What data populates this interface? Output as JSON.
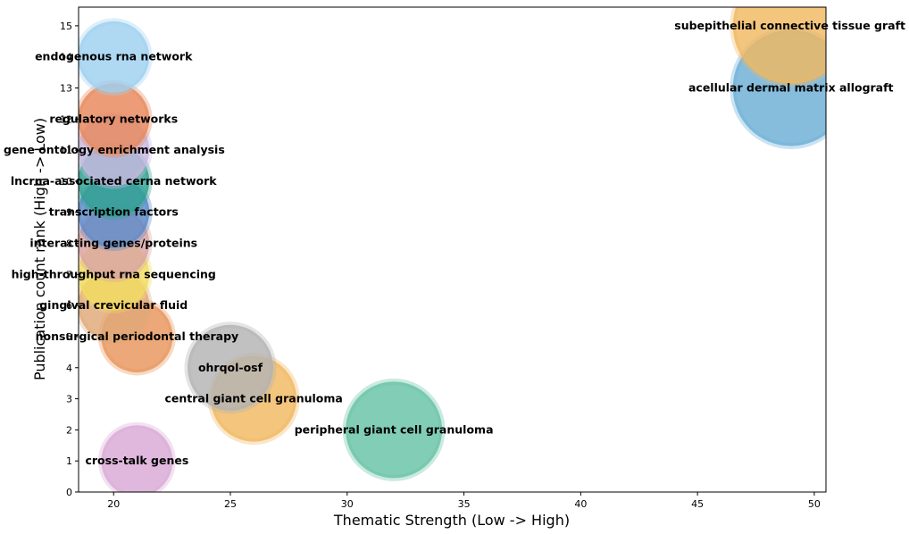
{
  "chart_data": {
    "type": "scatter",
    "title": "",
    "xlabel": "Thematic Strength (Low -> High)",
    "ylabel": "Publication count rank (High -> Low)",
    "xlim": [
      18.5,
      50.5
    ],
    "ylim": [
      0,
      15.6
    ],
    "xticks": [
      20,
      25,
      30,
      35,
      40,
      45,
      50
    ],
    "yticks": [
      0,
      1,
      2,
      3,
      4,
      5,
      6,
      7,
      8,
      9,
      10,
      11,
      12,
      13,
      14,
      15
    ],
    "grid": false,
    "legend": "none",
    "points": [
      {
        "label": "cross-talk genes",
        "x": 21,
        "y": 1,
        "size": 1,
        "color": "#d9a8d6"
      },
      {
        "label": "peripheral giant cell granuloma",
        "x": 32,
        "y": 2,
        "size": 3,
        "color": "#66c2a5"
      },
      {
        "label": "central giant cell granuloma",
        "x": 26,
        "y": 3,
        "size": 2,
        "color": "#f0b860"
      },
      {
        "label": "ohrqol-osf",
        "x": 25,
        "y": 4,
        "size": 2,
        "color": "#b3b3b3"
      },
      {
        "label": "nonsurgical periodontal therapy",
        "x": 21,
        "y": 5,
        "size": 1,
        "color": "#e8955a"
      },
      {
        "label": "gingival crevicular fluid",
        "x": 20,
        "y": 6,
        "size": 1,
        "color": "#e0a878"
      },
      {
        "label": "high-throughput rna sequencing",
        "x": 20,
        "y": 7,
        "size": 1,
        "color": "#f2dd60"
      },
      {
        "label": "interacting genes/proteins",
        "x": 20,
        "y": 8,
        "size": 1,
        "color": "#d9a3a3"
      },
      {
        "label": "transcription factors",
        "x": 20,
        "y": 9,
        "size": 1,
        "color": "#5b8ac9"
      },
      {
        "label": "lncrna-associated cerna network",
        "x": 20,
        "y": 10,
        "size": 1,
        "color": "#2ea190"
      },
      {
        "label": "gene ontology enrichment analysis",
        "x": 20,
        "y": 11,
        "size": 1,
        "color": "#c8b8e0"
      },
      {
        "label": "regulatory networks",
        "x": 20,
        "y": 12,
        "size": 1,
        "color": "#e8885a"
      },
      {
        "label": "endogenous rna network",
        "x": 20,
        "y": 14,
        "size": 1,
        "color": "#9ed0f0"
      },
      {
        "label": "acellular dermal matrix allograft",
        "x": 49,
        "y": 13,
        "size": 4,
        "color": "#6baed6"
      },
      {
        "label": "subepithelial connective tissue graft",
        "x": 49,
        "y": 15,
        "size": 4,
        "color": "#f0b860"
      }
    ]
  }
}
